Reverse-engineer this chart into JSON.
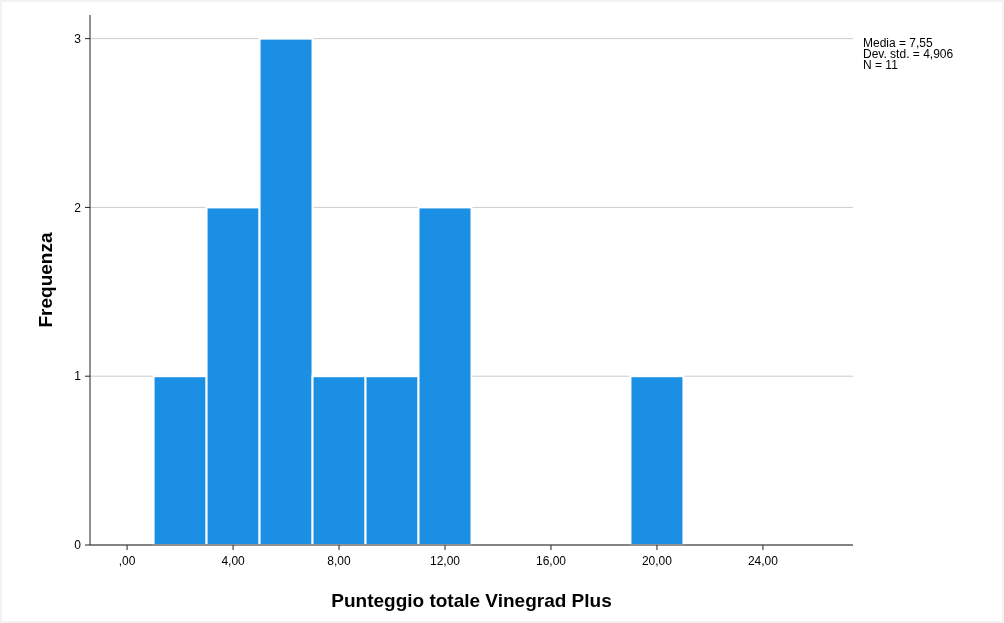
{
  "chart_data": {
    "type": "histogram",
    "xlabel": "Punteggio totale Vinegrad Plus",
    "ylabel": "Frequenza",
    "bins": [
      1,
      3,
      5,
      7,
      9,
      11,
      13,
      15,
      17,
      19,
      21
    ],
    "values": [
      1,
      2,
      3,
      1,
      1,
      2,
      0,
      0,
      0,
      1
    ],
    "color": "#1a8fe3",
    "xlim": [
      -1.4,
      27.4
    ],
    "xticks": [
      {
        "value": 0,
        "label": ",00"
      },
      {
        "value": 4,
        "label": "4,00"
      },
      {
        "value": 8,
        "label": "8,00"
      },
      {
        "value": 12,
        "label": "12,00"
      },
      {
        "value": 16,
        "label": "16,00"
      },
      {
        "value": 20,
        "label": "20,00"
      },
      {
        "value": 24,
        "label": "24,00"
      }
    ],
    "ylim": [
      0,
      3.14
    ],
    "yticks": [
      0,
      1,
      2,
      3
    ],
    "grid": "y",
    "annotations": [
      "Media = 7,55",
      "Dev. std. = 4,906",
      "N = 11"
    ]
  }
}
